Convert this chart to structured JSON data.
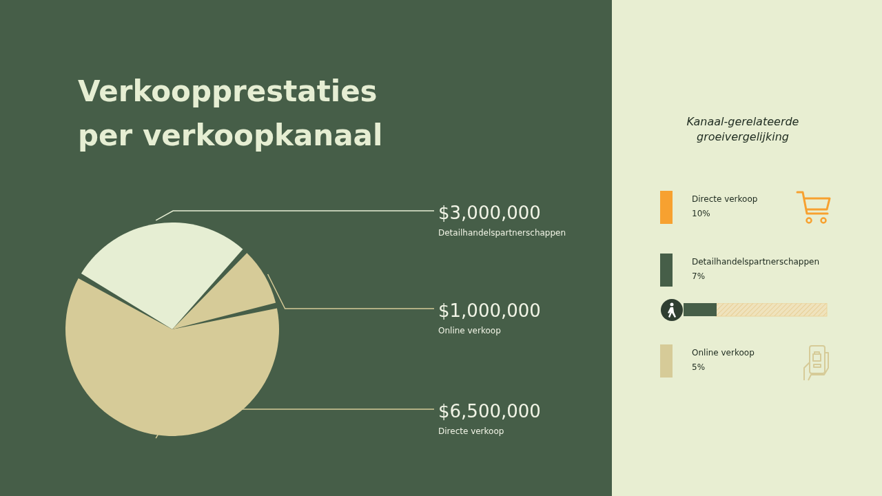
{
  "chart_data": [
    {
      "type": "pie",
      "title": "Verkoopprestaties per verkoopkanaal",
      "categories": [
        "Detailhandelspartnerschappen",
        "Online verkoop",
        "Directe verkoop"
      ],
      "values": [
        3000000,
        1000000,
        6500000
      ],
      "value_labels": [
        "$3,000,000",
        "$1,000,000",
        "$6,500,000"
      ],
      "colors": [
        "#e6eed3",
        "#d6cb98",
        "#d6cb98"
      ],
      "legend": false
    },
    {
      "type": "other",
      "title": "Kanaal-gerelateerde groeivergelijking",
      "categories": [
        "Directe verkoop",
        "Detailhandelspartnerschappen",
        "Online verkoop"
      ],
      "value_labels": [
        "10%",
        "7%",
        "5%"
      ]
    }
  ]
}
